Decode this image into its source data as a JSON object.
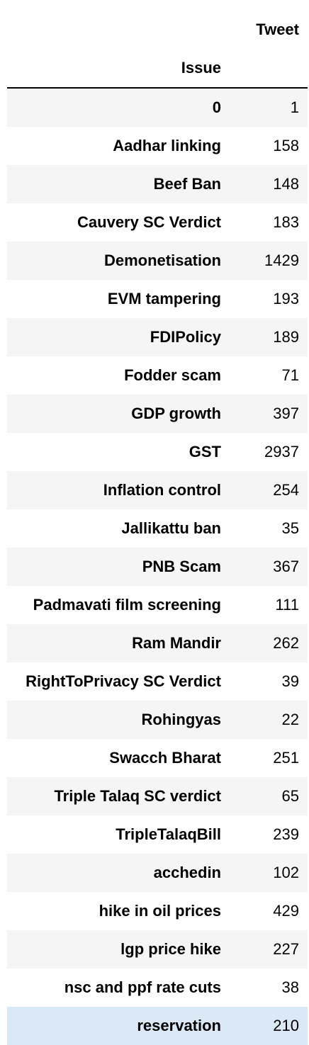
{
  "table": {
    "column_header": "Tweet",
    "index_name": "Issue",
    "rows": [
      {
        "issue": "0",
        "tweet": "1"
      },
      {
        "issue": "Aadhar linking",
        "tweet": "158"
      },
      {
        "issue": "Beef Ban",
        "tweet": "148"
      },
      {
        "issue": "Cauvery SC Verdict",
        "tweet": "183"
      },
      {
        "issue": "Demonetisation",
        "tweet": "1429"
      },
      {
        "issue": "EVM tampering",
        "tweet": "193"
      },
      {
        "issue": "FDIPolicy",
        "tweet": "189"
      },
      {
        "issue": "Fodder scam",
        "tweet": "71"
      },
      {
        "issue": "GDP growth",
        "tweet": "397"
      },
      {
        "issue": "GST",
        "tweet": "2937"
      },
      {
        "issue": "Inflation control",
        "tweet": "254"
      },
      {
        "issue": "Jallikattu ban",
        "tweet": "35"
      },
      {
        "issue": "PNB Scam",
        "tweet": "367"
      },
      {
        "issue": "Padmavati film screening",
        "tweet": "111"
      },
      {
        "issue": "Ram Mandir",
        "tweet": "262"
      },
      {
        "issue": "RightToPrivacy SC Verdict",
        "tweet": "39"
      },
      {
        "issue": "Rohingyas",
        "tweet": "22"
      },
      {
        "issue": "Swacch Bharat",
        "tweet": "251"
      },
      {
        "issue": "Triple Talaq SC verdict",
        "tweet": "65"
      },
      {
        "issue": "TripleTalaqBill",
        "tweet": "239"
      },
      {
        "issue": "acchedin",
        "tweet": "102"
      },
      {
        "issue": "hike in oil prices",
        "tweet": "429"
      },
      {
        "issue": "lgp price hike",
        "tweet": "227"
      },
      {
        "issue": "nsc and ppf rate cuts",
        "tweet": "38"
      },
      {
        "issue": "reservation",
        "tweet": "210"
      }
    ],
    "hovered_row": 24
  },
  "colors": {
    "row_stripe": "#f5f5f5",
    "row_hover": "#dbe9f7",
    "header_rule": "#000000"
  }
}
